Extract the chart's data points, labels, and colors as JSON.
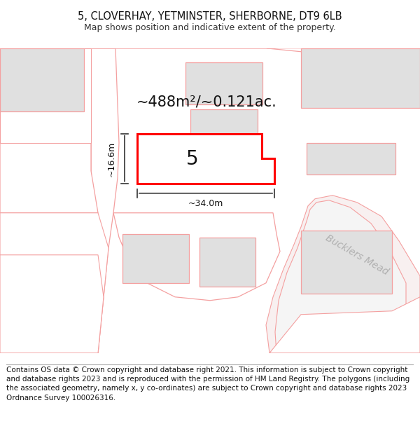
{
  "title_line1": "5, CLOVERHAY, YETMINSTER, SHERBORNE, DT9 6LB",
  "title_line2": "Map shows position and indicative extent of the property.",
  "footer_text": "Contains OS data © Crown copyright and database right 2021. This information is subject to Crown copyright and database rights 2023 and is reproduced with the permission of HM Land Registry. The polygons (including the associated geometry, namely x, y co-ordinates) are subject to Crown copyright and database rights 2023 Ordnance Survey 100026316.",
  "area_label": "~488m²/~0.121ac.",
  "plot_number": "5",
  "dim_width": "~34.0m",
  "dim_height": "~16.6m",
  "road_label": "Bucklers Mead",
  "bg_color": "#ffffff",
  "map_bg": "#ffffff",
  "neighbor_fill": "#e0e0e0",
  "boundary_color": "#ff0000",
  "pink": "#f4a0a0",
  "dim_line_color": "#333333",
  "title_fontsize": 10.5,
  "subtitle_fontsize": 9,
  "footer_fontsize": 7.5,
  "area_fontsize": 15,
  "plot_num_fontsize": 20,
  "road_label_fontsize": 10,
  "dim_label_fontsize": 9
}
